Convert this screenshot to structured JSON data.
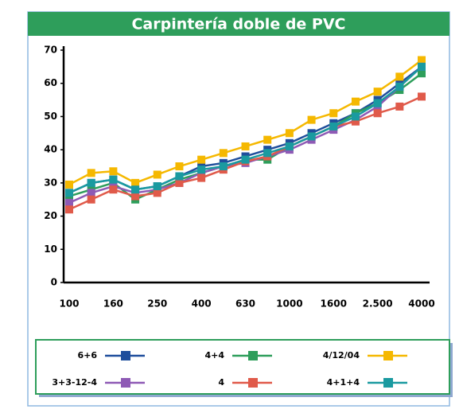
{
  "chart_data": {
    "type": "line",
    "title": "Carpintería doble de PVC",
    "categories": [
      "100",
      null,
      "160",
      null,
      "250",
      null,
      "400",
      null,
      "630",
      null,
      "1000",
      null,
      "1600",
      null,
      "2.500",
      null,
      "4000"
    ],
    "ylim": [
      0,
      70
    ],
    "yticks": [
      0,
      10,
      20,
      30,
      40,
      50,
      60,
      70
    ],
    "series": [
      {
        "name": "6+6",
        "color": "#1f4e9c",
        "values": [
          27,
          30,
          31,
          28,
          29,
          32,
          35,
          36,
          38,
          40,
          42,
          45,
          48,
          51,
          55,
          60,
          65
        ]
      },
      {
        "name": "4+4",
        "color": "#2e9e5b",
        "values": [
          26,
          28,
          30,
          25,
          28,
          31,
          33,
          35,
          37,
          37,
          41,
          44,
          47,
          51,
          54,
          58,
          63
        ]
      },
      {
        "name": "4/12/04",
        "color": "#f5b800",
        "values": [
          29.5,
          33,
          33.5,
          30,
          32.5,
          35,
          37,
          39,
          41,
          43,
          45,
          49,
          51,
          54.5,
          57.5,
          62,
          67
        ]
      },
      {
        "name": "3+3-12-4",
        "color": "#8e5ab5",
        "values": [
          24,
          27,
          29,
          27,
          28,
          30,
          33,
          35,
          36,
          38,
          40,
          43,
          46,
          49,
          53,
          59,
          65
        ]
      },
      {
        "name": "4",
        "color": "#e05a4a",
        "values": [
          22,
          25,
          28,
          26,
          27,
          30,
          31.5,
          34,
          36.5,
          38,
          41,
          44,
          47,
          48.5,
          51,
          53,
          56
        ]
      },
      {
        "name": "4+1+4",
        "color": "#1a9aa0",
        "values": [
          27,
          30,
          31,
          28,
          29,
          32,
          34,
          35,
          37,
          39,
          41,
          44,
          47,
          50,
          54,
          59,
          65
        ]
      }
    ]
  }
}
